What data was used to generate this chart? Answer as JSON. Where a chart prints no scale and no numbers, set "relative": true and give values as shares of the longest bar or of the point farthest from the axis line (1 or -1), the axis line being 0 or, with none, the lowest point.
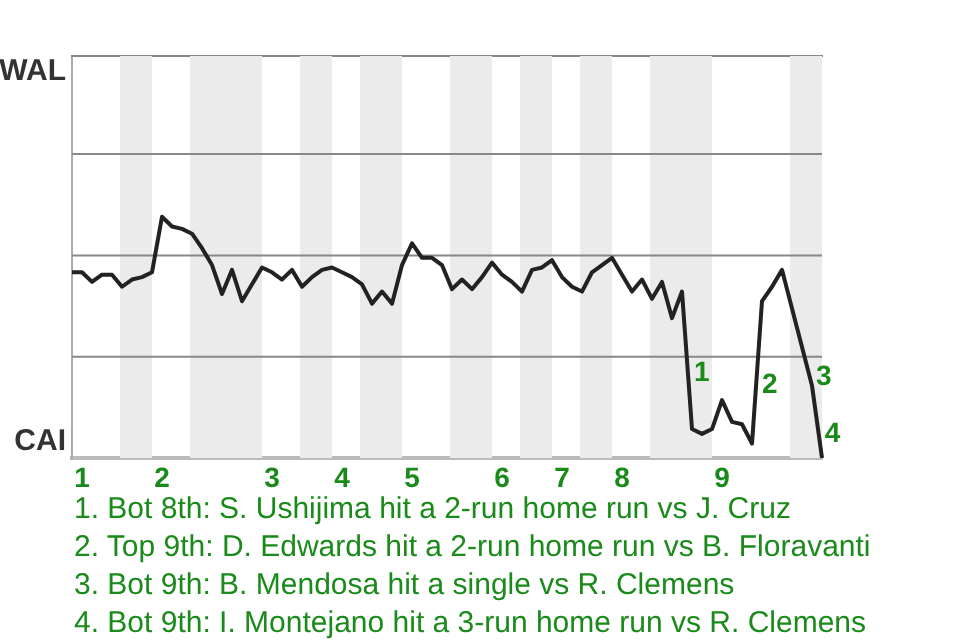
{
  "chart_data": {
    "type": "line",
    "relative": true,
    "categories": [
      null,
      "1",
      null,
      null,
      null,
      null,
      null,
      null,
      null,
      "2",
      null,
      null,
      null,
      null,
      null,
      null,
      null,
      null,
      null,
      null,
      "3",
      null,
      null,
      null,
      null,
      null,
      null,
      "4",
      null,
      null,
      null,
      null,
      null,
      null,
      "5",
      null,
      null,
      null,
      null,
      null,
      null,
      null,
      null,
      "6",
      null,
      null,
      null,
      null,
      null,
      "7",
      null,
      null,
      null,
      null,
      null,
      "8",
      null,
      null,
      null,
      null,
      null,
      null,
      null,
      null,
      null,
      "9",
      null,
      null,
      null,
      null,
      null,
      null,
      null,
      null,
      null,
      null
    ],
    "series": [
      {
        "color": "#222222",
        "values": [
          0.77,
          0.77,
          0.73,
          0.76,
          0.76,
          0.71,
          0.74,
          0.75,
          0.77,
          1,
          0.96,
          0.95,
          0.93,
          0.87,
          0.8,
          0.68,
          0.78,
          0.65,
          0.72,
          0.79,
          0.77,
          0.74,
          0.78,
          0.71,
          0.75,
          0.78,
          0.79,
          0.77,
          0.75,
          0.72,
          0.64,
          0.69,
          0.64,
          0.8,
          0.89,
          0.83,
          0.83,
          0.8,
          0.7,
          0.74,
          0.7,
          0.75,
          0.81,
          0.76,
          0.73,
          0.69,
          0.78,
          0.79,
          0.82,
          0.75,
          0.71,
          0.69,
          0.77,
          0.8,
          0.83,
          0.76,
          0.69,
          0.74,
          0.66,
          0.73,
          0.58,
          0.69,
          0.12,
          0.1,
          0.12,
          0.24,
          0.15,
          0.14,
          0.06,
          0.65,
          0.71,
          0.78,
          0.62,
          0.46,
          0.3,
          0
        ]
      }
    ],
    "ref_lines": [
      {
        "axis": "y",
        "value": 0.42,
        "color": "#888888"
      },
      {
        "axis": "y",
        "value": 0.84,
        "color": "#888888"
      },
      {
        "axis": "y",
        "value": 1.26,
        "color": "#888888"
      }
    ],
    "marker": "none",
    "annotations": [
      "WAL",
      "CAI",
      "1",
      "2",
      "3",
      "4",
      "1. Bot 8th: S. Ushijima hit a 2-run home run vs J. Cruz",
      "2. Top 9th: D. Edwards hit a 2-run home run vs B. Floravanti",
      "3. Bot 9th: B. Mendosa hit a single vs R. Clemens",
      "4. Bot 9th: I. Montejano hit a 3-run home run vs R. Clemens"
    ]
  }
}
